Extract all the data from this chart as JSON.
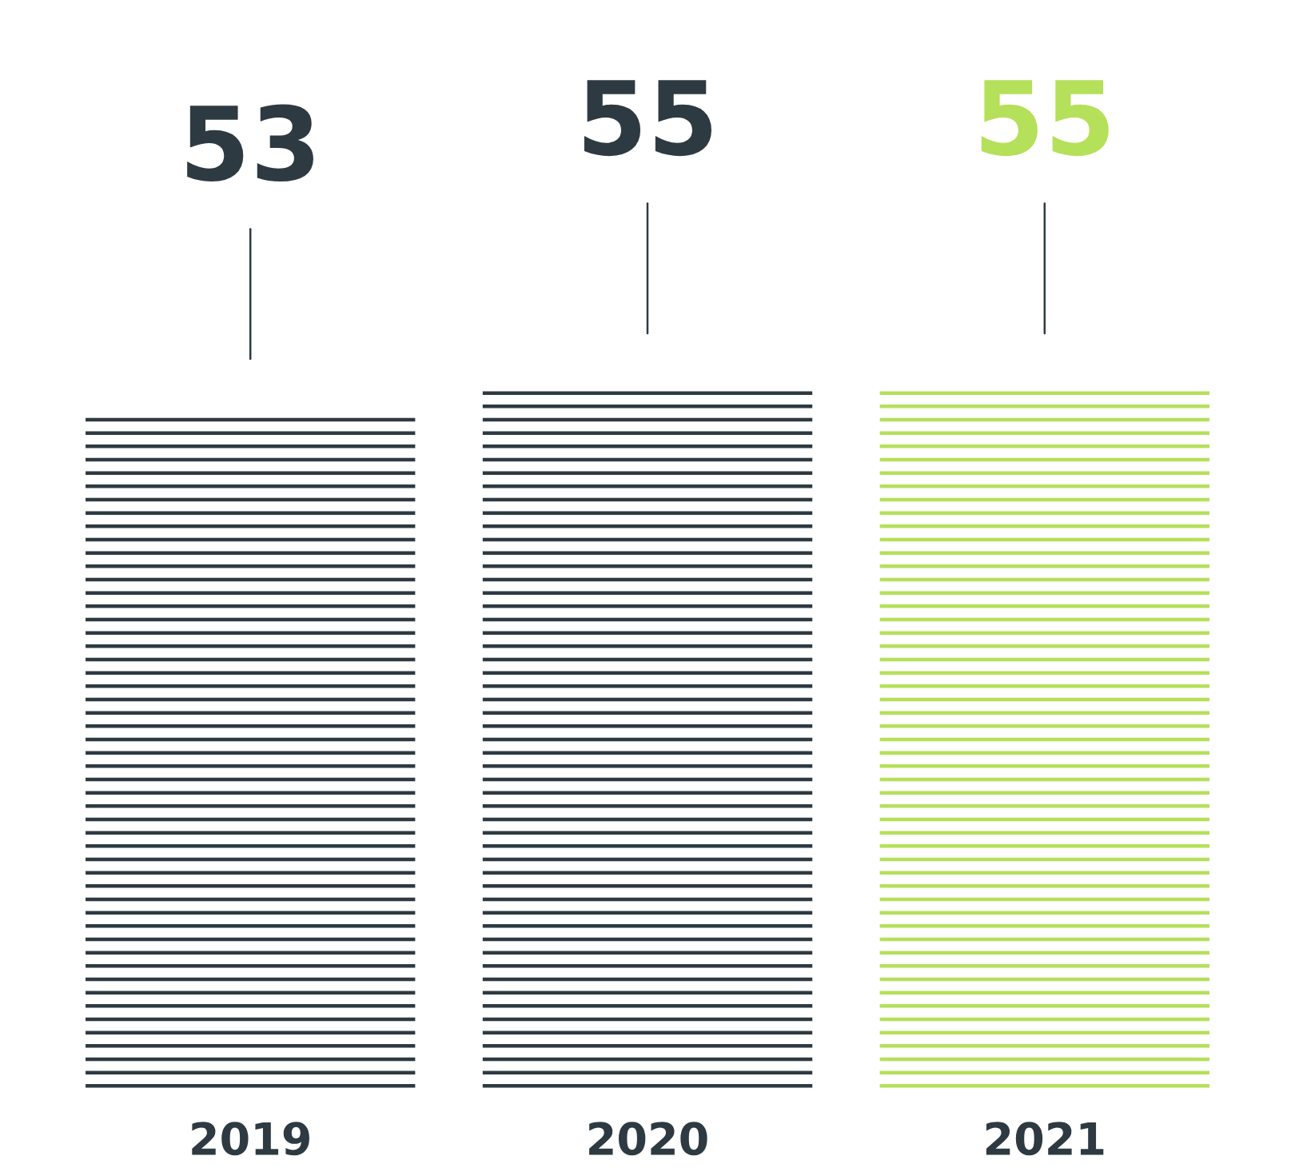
{
  "chart_data": {
    "type": "bar",
    "categories": [
      "2019",
      "2020",
      "2021"
    ],
    "values": [
      53,
      55,
      55
    ],
    "colors": [
      "#2e3a42",
      "#2e3a42",
      "#b5e05a"
    ],
    "data_labels": true,
    "grid": false,
    "legend": false
  }
}
